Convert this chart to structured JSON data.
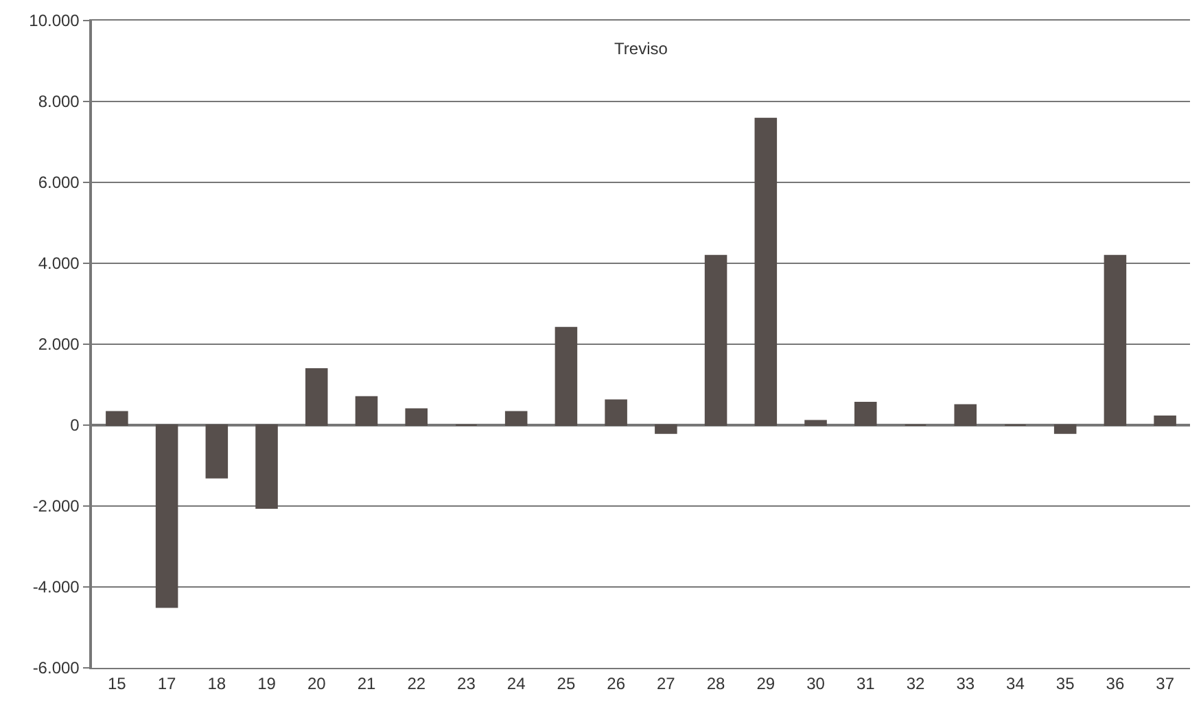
{
  "chart_data": {
    "type": "bar",
    "title": "Treviso",
    "categories": [
      "15",
      "17",
      "18",
      "19",
      "20",
      "21",
      "22",
      "23",
      "24",
      "25",
      "26",
      "27",
      "28",
      "29",
      "30",
      "31",
      "32",
      "33",
      "34",
      "35",
      "36",
      "37"
    ],
    "values": [
      330,
      -4500,
      -1300,
      -2050,
      1390,
      700,
      400,
      0,
      330,
      2410,
      620,
      -200,
      4190,
      7580,
      110,
      560,
      0,
      500,
      0,
      -200,
      4190,
      220
    ],
    "color": "#574f4c",
    "ylim": [
      -6000,
      10000
    ],
    "yticks": [
      {
        "value": -6000,
        "label": "-6.000"
      },
      {
        "value": -4000,
        "label": "-4.000"
      },
      {
        "value": -2000,
        "label": "-2.000"
      },
      0,
      {
        "value": 2000,
        "label": "2.000"
      },
      {
        "value": 4000,
        "label": "4.000"
      },
      {
        "value": 6000,
        "label": "6.000"
      },
      {
        "value": 8000,
        "label": "8.000"
      },
      {
        "value": 10000,
        "label": "10.000"
      }
    ],
    "grid": "y"
  }
}
